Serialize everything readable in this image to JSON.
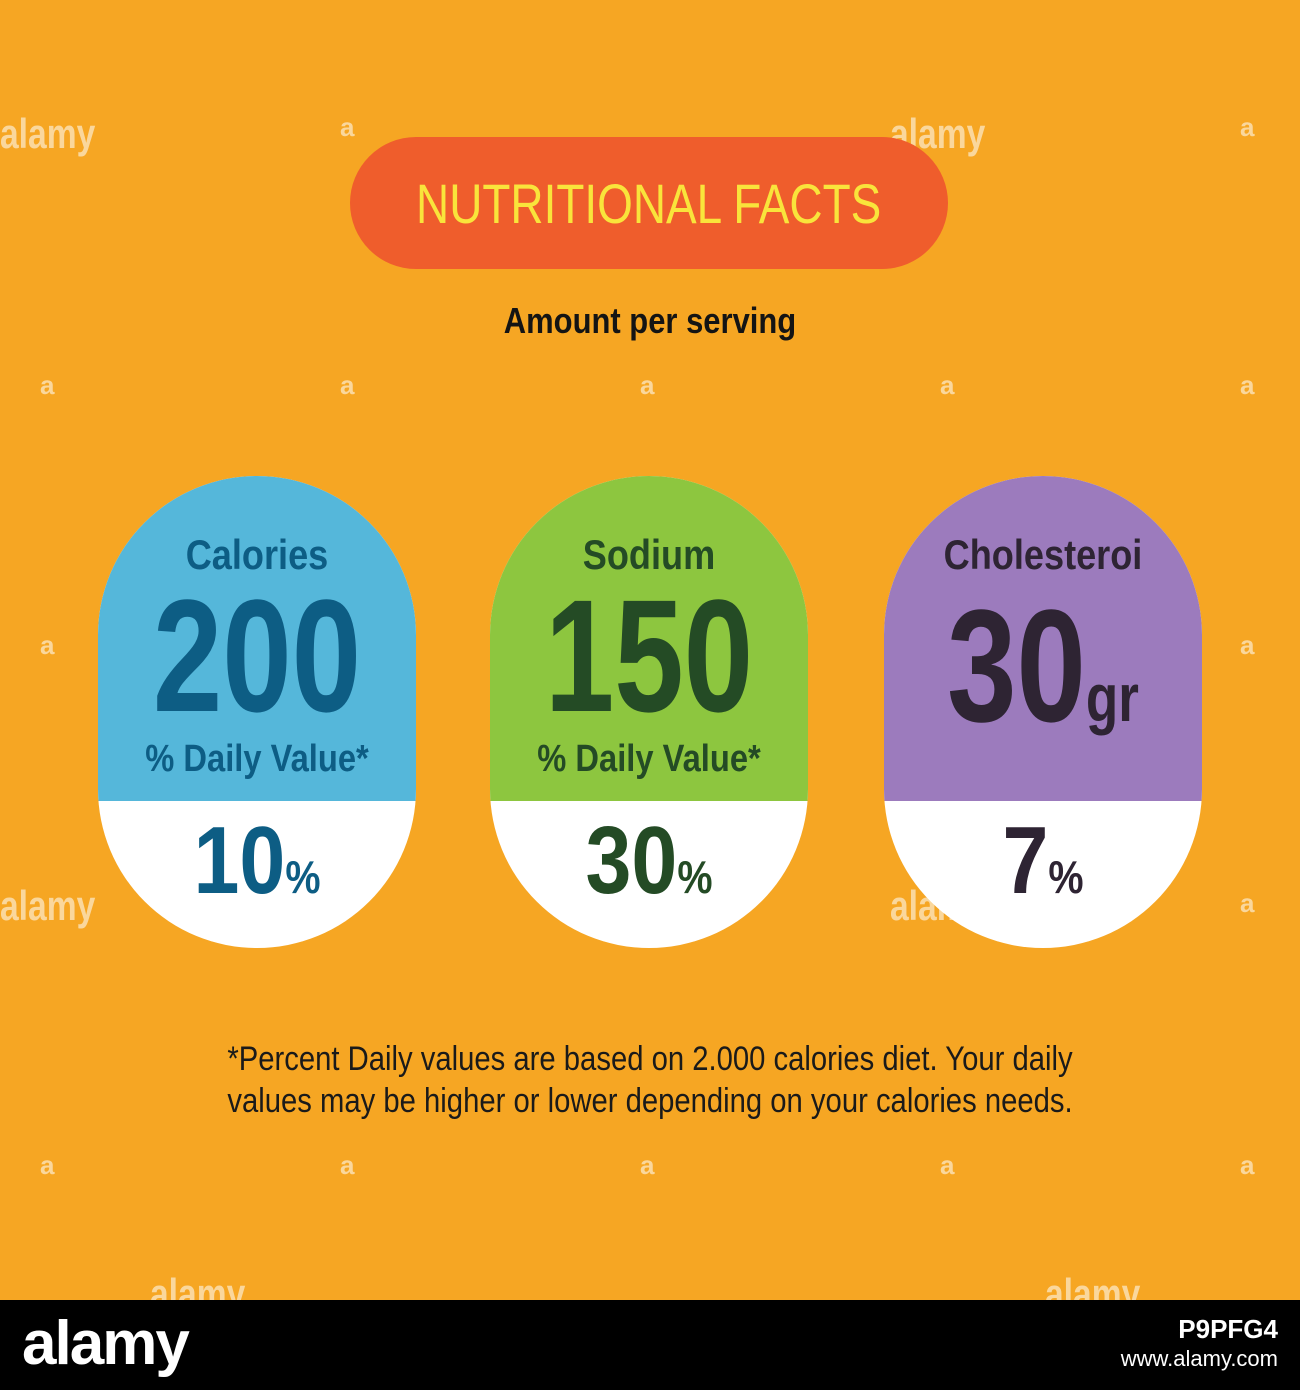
{
  "header": {
    "title": "NUTRITIONAL FACTS",
    "subtitle": "Amount per serving"
  },
  "cards": [
    {
      "label": "Calories",
      "value": "200",
      "unit": "",
      "daily_value_label": "% Daily Value*",
      "percent": "10",
      "percent_symbol": "%",
      "color_top": "#55b7da",
      "color_text": "#0d5d84"
    },
    {
      "label": "Sodium",
      "value": "150",
      "unit": "",
      "daily_value_label": "% Daily Value*",
      "percent": "30",
      "percent_symbol": "%",
      "color_top": "#8dc63f",
      "color_text": "#244b25"
    },
    {
      "label": "Cholesteroi",
      "value": "30",
      "unit": "gr",
      "daily_value_label": "",
      "percent": "7",
      "percent_symbol": "%",
      "color_top": "#9c7bbd",
      "color_text": "#2e2433"
    }
  ],
  "footnote": {
    "line1": "*Percent Daily values are based on 2.000 calories diet. Your daily",
    "line2": "values may be higher or lower depending on your calories needs."
  },
  "watermark": {
    "text": "alamy",
    "letter": "a"
  },
  "footer": {
    "brand": "alamy",
    "stock_id": "P9PFG4",
    "site": "www.alamy.com"
  },
  "colors": {
    "background": "#f6a623",
    "title_pill": "#ef5d2c",
    "title_text": "#f9e43b"
  }
}
